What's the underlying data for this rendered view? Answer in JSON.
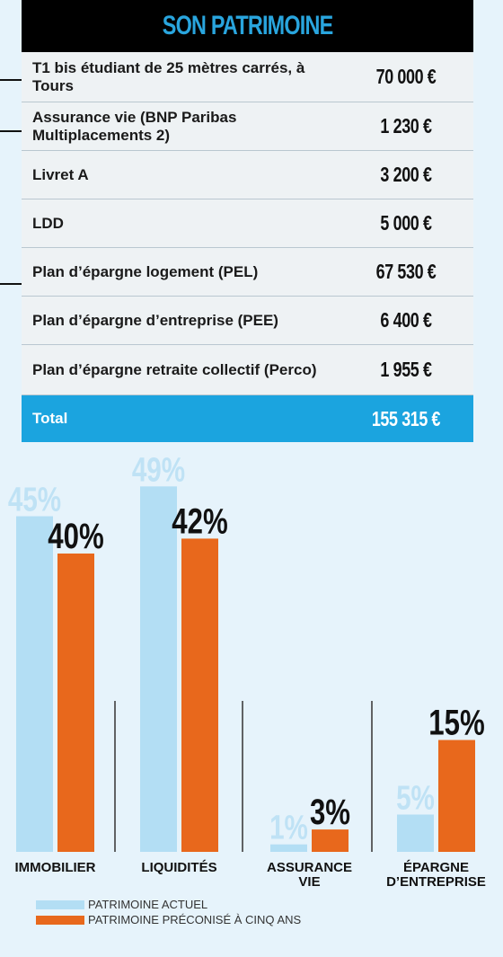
{
  "table": {
    "title": "SON PATRIMOINE",
    "rows": [
      {
        "label": "T1 bis étudiant de 25 mètres carrés, à Tours",
        "value": "70 000 €"
      },
      {
        "label": "Assurance vie (BNP Paribas Multiplacements 2)",
        "value": "1 230 €"
      },
      {
        "label": "Livret A",
        "value": "3 200 €"
      },
      {
        "label": "LDD",
        "value": "5 000 €"
      },
      {
        "label": "Plan d’épargne logement (PEL)",
        "value": "67 530 €"
      },
      {
        "label": "Plan d’épargne d’entreprise (PEE)",
        "value": "6 400 €"
      },
      {
        "label": "Plan d’épargne retraite collectif (Perco)",
        "value": "1 955 €"
      }
    ],
    "total": {
      "label": "Total",
      "value": "155 315 €"
    }
  },
  "chart_data": {
    "type": "bar",
    "categories": [
      "IMMOBILIER",
      "LIQUIDITÉS",
      "ASSURANCE VIE",
      "ÉPARGNE D’ENTREPRISE"
    ],
    "series": [
      {
        "name": "PATRIMOINE ACTUEL",
        "values": [
          45,
          49,
          1,
          5
        ],
        "labels": [
          "45%",
          "49%",
          "1%",
          "5%"
        ],
        "color": "#b3def4"
      },
      {
        "name": "PATRIMOINE PRÉCONISÉ À CINQ ANS",
        "values": [
          40,
          42,
          3,
          15
        ],
        "labels": [
          "40%",
          "42%",
          "3%",
          "15%"
        ],
        "color": "#e8681c"
      }
    ],
    "ylim": [
      0,
      50
    ],
    "legend_position": "bottom-left"
  },
  "colors": {
    "accent_blue": "#1ba4df",
    "orange": "#e8681c",
    "light_blue": "#b3def4"
  }
}
